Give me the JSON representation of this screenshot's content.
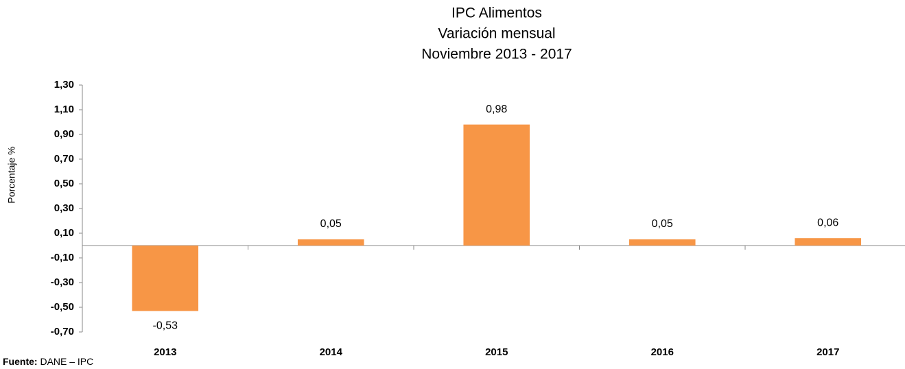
{
  "chart_data": {
    "type": "bar",
    "title": [
      "IPC Alimentos",
      "Variación mensual",
      "Noviembre 2013 - 2017"
    ],
    "y_label": "Porcentaje %",
    "categories": [
      "2013",
      "2014",
      "2015",
      "2016",
      "2017"
    ],
    "values": [
      -0.53,
      0.05,
      0.98,
      0.05,
      0.06
    ],
    "value_labels": [
      "-0,53",
      "0,05",
      "0,98",
      "0,05",
      "0,06"
    ],
    "color": "#f79646",
    "ylim": [
      -0.7,
      1.3
    ],
    "yticks": [
      {
        "value": -0.7,
        "label": "-0,70"
      },
      {
        "value": -0.5,
        "label": "-0,50"
      },
      {
        "value": -0.3,
        "label": "-0,30"
      },
      {
        "value": -0.1,
        "label": "-0,10"
      },
      {
        "value": 0.1,
        "label": "0,10"
      },
      {
        "value": 0.3,
        "label": "0,30"
      },
      {
        "value": 0.5,
        "label": "0,50"
      },
      {
        "value": 0.7,
        "label": "0,70"
      },
      {
        "value": 0.9,
        "label": "0,90"
      },
      {
        "value": 1.1,
        "label": "1,10"
      },
      {
        "value": 1.3,
        "label": "1,30"
      }
    ],
    "grid": false,
    "source_prefix": "Fuente:",
    "source": "DANE – IPC"
  }
}
